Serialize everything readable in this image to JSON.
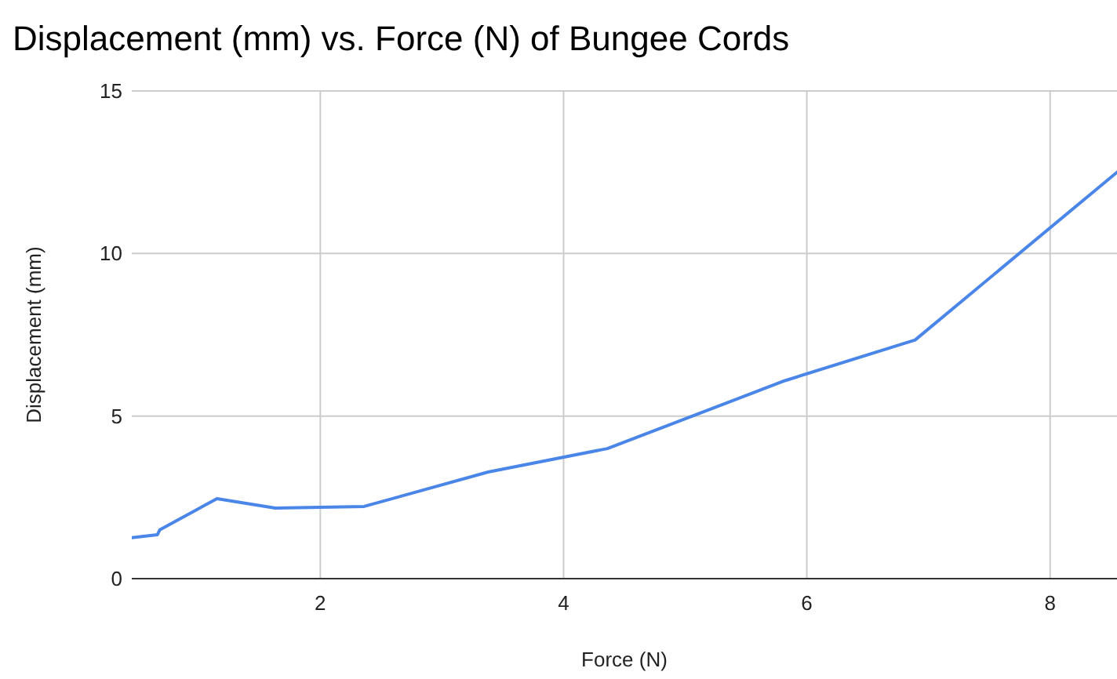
{
  "chart_data": {
    "type": "line",
    "title": "Displacement (mm) vs. Force (N) of Bungee Cords",
    "xlabel": "Force (N)",
    "ylabel": "Displacement (mm)",
    "x": [
      0.45,
      0.66,
      0.68,
      1.15,
      1.63,
      2.36,
      3.38,
      4.36,
      5.82,
      6.89,
      8.55
    ],
    "series": [
      {
        "color": "#4a86e8",
        "values": [
          1.26,
          1.35,
          1.5,
          2.46,
          2.17,
          2.22,
          3.28,
          4.0,
          6.09,
          7.34,
          12.5
        ]
      }
    ],
    "xlim": [
      0.45,
      8.55
    ],
    "xticks": [
      2,
      4,
      6,
      8
    ],
    "ylim": [
      0,
      15
    ],
    "yticks": [
      0,
      5,
      10,
      15
    ],
    "grid": true,
    "marker": "none",
    "line_style": "solid"
  }
}
